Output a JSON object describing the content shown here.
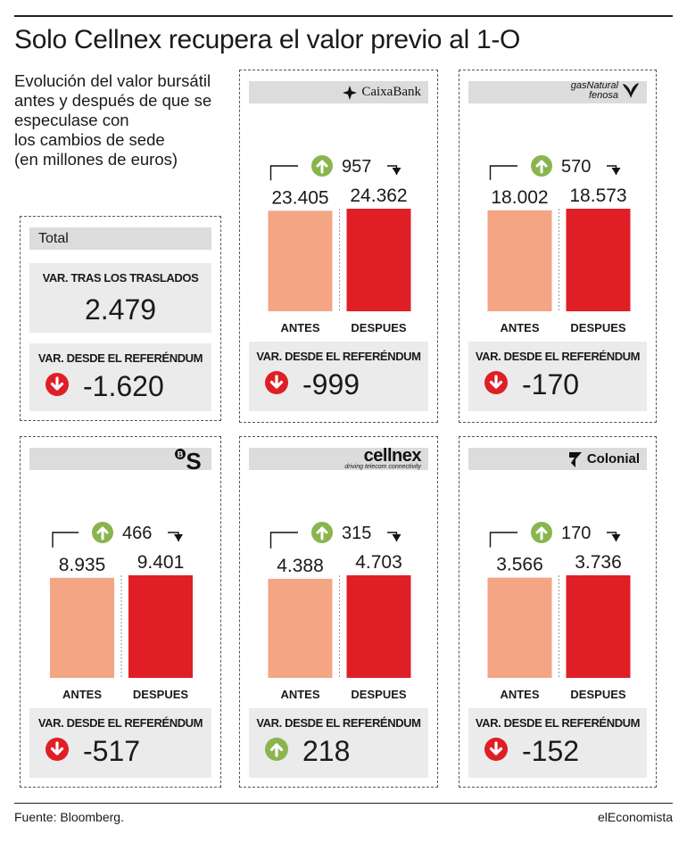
{
  "title": "Solo Cellnex recupera el valor previo al 1-O",
  "subtitle": "Evolución del valor bursátil\nantes y después de que se\nespeculase con\nlos cambios de sede\n(en millones de euros)",
  "source": "Fuente: Bloomberg.",
  "brand": "elEconomista",
  "colors": {
    "antes": "#f3a584",
    "despues": "#e01e25",
    "up": "#8ab54e",
    "down": "#e01e25"
  },
  "total": {
    "label": "Total",
    "tras_label": "VAR. TRAS LOS TRASLADOS",
    "tras_value": "2.479",
    "ref_label": "VAR. DESDE EL REFERÉNDUM",
    "ref_value": "-1.620",
    "ref_dir": "down"
  },
  "ref_label": "VAR. DESDE EL REFERÉNDUM",
  "chart_data": [
    {
      "type": "bar",
      "company": "CaixaBank",
      "categories": [
        "ANTES",
        "DESPUES"
      ],
      "values": [
        23405,
        24362
      ],
      "value_labels": [
        "23.405",
        "24.362"
      ],
      "change": "957",
      "ref_var": "-999",
      "ref_dir": "down"
    },
    {
      "type": "bar",
      "company": "gasNatural fenosa",
      "categories": [
        "ANTES",
        "DESPUES"
      ],
      "values": [
        18002,
        18573
      ],
      "value_labels": [
        "18.002",
        "18.573"
      ],
      "change": "570",
      "ref_var": "-170",
      "ref_dir": "down"
    },
    {
      "type": "bar",
      "company": "BS",
      "categories": [
        "ANTES",
        "DESPUES"
      ],
      "values": [
        8935,
        9401
      ],
      "value_labels": [
        "8.935",
        "9.401"
      ],
      "change": "466",
      "ref_var": "-517",
      "ref_dir": "down"
    },
    {
      "type": "bar",
      "company": "cellnex",
      "tagline": "driving telecom connectivity",
      "categories": [
        "ANTES",
        "DESPUES"
      ],
      "values": [
        4388,
        4703
      ],
      "value_labels": [
        "4.388",
        "4.703"
      ],
      "change": "315",
      "ref_var": "218",
      "ref_dir": "up"
    },
    {
      "type": "bar",
      "company": "Colonial",
      "categories": [
        "ANTES",
        "DESPUES"
      ],
      "values": [
        3566,
        3736
      ],
      "value_labels": [
        "3.566",
        "3.736"
      ],
      "change": "170",
      "ref_var": "-152",
      "ref_dir": "down"
    }
  ]
}
